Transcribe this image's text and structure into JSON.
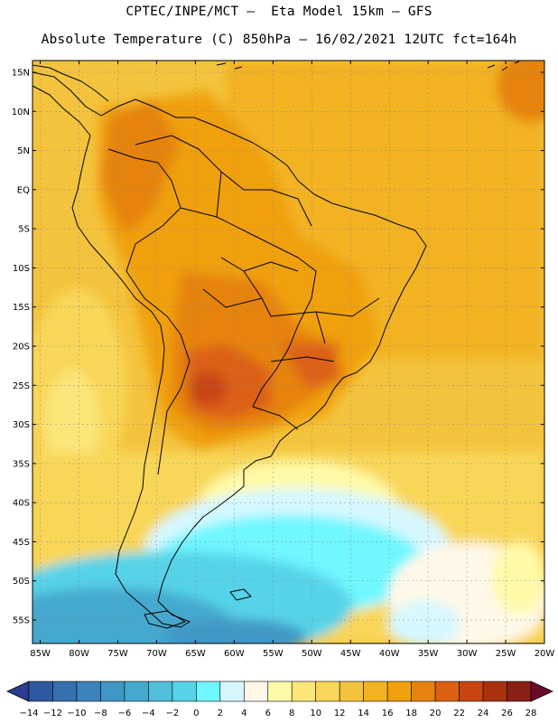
{
  "header": {
    "line1": "CPTEC/INPE/MCT –  Eta Model 15km – GFS",
    "line2": "Absolute Temperature (C) 850hPa – 16/02/2021 12UTC fct=164h"
  },
  "map": {
    "lat_labels": [
      "15N",
      "10N",
      "5N",
      "EQ",
      "5S",
      "10S",
      "15S",
      "20S",
      "25S",
      "30S",
      "35S",
      "40S",
      "45S",
      "50S",
      "55S"
    ],
    "lon_labels": [
      "85W",
      "80W",
      "75W",
      "70W",
      "65W",
      "60W",
      "55W",
      "50W",
      "45W",
      "40W",
      "35W",
      "30W",
      "25W",
      "20W"
    ],
    "lat_range": [
      -58,
      16.5
    ],
    "lon_range": [
      -86,
      -20
    ]
  },
  "legend": {
    "labels": [
      "-14",
      "-12",
      "-10",
      "-8",
      "-6",
      "-4",
      "-2",
      "0",
      "2",
      "4",
      "6",
      "8",
      "10",
      "12",
      "14",
      "16",
      "18",
      "20",
      "22",
      "24",
      "26",
      "28"
    ],
    "colors": [
      "#2a3c8f",
      "#2f58a3",
      "#3570b1",
      "#3b83bd",
      "#3f97c5",
      "#45a9cf",
      "#4fbfdc",
      "#57d3e8",
      "#6ff7ff",
      "#d5f8ff",
      "#fff8e8",
      "#fffaa8",
      "#fbe679",
      "#f8d758",
      "#f4c33d",
      "#f2b221",
      "#f0a00e",
      "#e6830f",
      "#dc6014",
      "#c84512",
      "#a83110",
      "#8a1f14",
      "#6a0a2a"
    ]
  }
}
